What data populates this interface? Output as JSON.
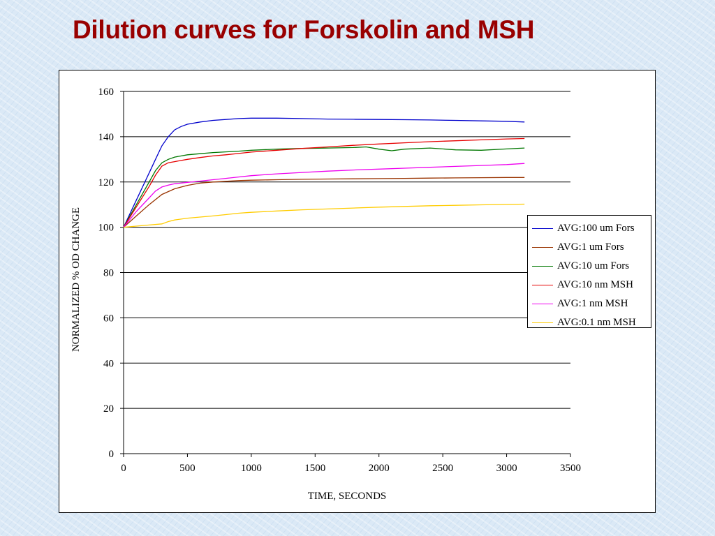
{
  "slide": {
    "title": "Dilution curves for Forskolin and MSH"
  },
  "chart_data": {
    "type": "line",
    "title": "",
    "xlabel": "TIME, SECONDS",
    "ylabel": "NORMALIZED % OD CHANGE",
    "xlim": [
      0,
      3500
    ],
    "ylim": [
      0,
      160
    ],
    "xticks": [
      0,
      500,
      1000,
      1500,
      2000,
      2500,
      3000,
      3500
    ],
    "yticks": [
      0,
      20,
      40,
      60,
      80,
      100,
      120,
      140,
      160
    ],
    "grid": "horizontal",
    "legend_position": "right",
    "series": [
      {
        "name": "AVG:100 um Fors",
        "color": "#0000cc",
        "x": [
          0,
          100,
          200,
          250,
          300,
          350,
          400,
          450,
          500,
          600,
          700,
          800,
          900,
          1000,
          1200,
          1400,
          1600,
          1800,
          2000,
          2200,
          2400,
          2600,
          2800,
          3000,
          3140
        ],
        "y": [
          100,
          112,
          124,
          130,
          136,
          140,
          143,
          144.5,
          145.5,
          146.5,
          147.2,
          147.6,
          148,
          148.2,
          148.2,
          148,
          147.8,
          147.7,
          147.6,
          147.5,
          147.4,
          147.2,
          147,
          146.8,
          146.5
        ]
      },
      {
        "name": "AVG:1 um Fors",
        "color": "#993300",
        "x": [
          0,
          100,
          200,
          300,
          400,
          500,
          600,
          700,
          800,
          900,
          1000,
          1200,
          1400,
          1600,
          1800,
          2000,
          2200,
          2400,
          2600,
          2800,
          3000,
          3140
        ],
        "y": [
          100,
          105,
          110,
          114.5,
          117,
          118.5,
          119.5,
          120,
          120.3,
          120.6,
          120.8,
          121,
          121.2,
          121.3,
          121.4,
          121.5,
          121.6,
          121.7,
          121.8,
          121.9,
          122,
          122
        ]
      },
      {
        "name": "AVG:10 um Fors",
        "color": "#007700",
        "x": [
          0,
          100,
          200,
          250,
          300,
          350,
          400,
          500,
          600,
          700,
          800,
          900,
          1000,
          1200,
          1400,
          1600,
          1800,
          1900,
          2000,
          2100,
          2200,
          2400,
          2600,
          2800,
          3000,
          3140
        ],
        "y": [
          100,
          110,
          120,
          125,
          128.5,
          130,
          131,
          132,
          132.5,
          133,
          133.3,
          133.6,
          134,
          134.5,
          134.8,
          135,
          135.2,
          135.5,
          134.5,
          133.8,
          134.5,
          135,
          134.2,
          134,
          134.6,
          135
        ]
      },
      {
        "name": "AVG:10 nm MSH",
        "color": "#e60000",
        "x": [
          0,
          100,
          200,
          250,
          300,
          350,
          400,
          500,
          600,
          700,
          800,
          900,
          1000,
          1200,
          1400,
          1600,
          1800,
          2000,
          2200,
          2400,
          2600,
          2800,
          3000,
          3140
        ],
        "y": [
          100,
          109,
          118,
          123,
          127,
          128.5,
          129,
          130,
          130.8,
          131.5,
          132,
          132.6,
          133.2,
          134,
          134.8,
          135.5,
          136.2,
          136.8,
          137.3,
          137.8,
          138.2,
          138.6,
          139,
          139.2
        ]
      },
      {
        "name": "AVG:1 nm MSH",
        "color": "#ee00ee",
        "x": [
          0,
          100,
          200,
          250,
          300,
          350,
          400,
          500,
          600,
          700,
          800,
          900,
          1000,
          1200,
          1400,
          1600,
          1800,
          2000,
          2200,
          2400,
          2600,
          2800,
          3000,
          3140
        ],
        "y": [
          100,
          107,
          113,
          116,
          117.8,
          118.6,
          119.2,
          119.8,
          120.4,
          121,
          121.6,
          122.2,
          122.8,
          123.6,
          124.2,
          124.8,
          125.3,
          125.7,
          126.1,
          126.5,
          126.9,
          127.3,
          127.7,
          128.2
        ]
      },
      {
        "name": "AVG:0.1 nm MSH",
        "color": "#ffcc00",
        "x": [
          0,
          100,
          200,
          300,
          350,
          400,
          500,
          600,
          700,
          800,
          900,
          1000,
          1200,
          1400,
          1600,
          1800,
          2000,
          2200,
          2400,
          2600,
          2800,
          3000,
          3140
        ],
        "y": [
          100,
          100.5,
          101,
          101.5,
          102.5,
          103.2,
          104,
          104.5,
          105,
          105.6,
          106.2,
          106.6,
          107.2,
          107.7,
          108.1,
          108.5,
          108.9,
          109.2,
          109.5,
          109.7,
          109.9,
          110.1,
          110.2
        ]
      }
    ]
  }
}
